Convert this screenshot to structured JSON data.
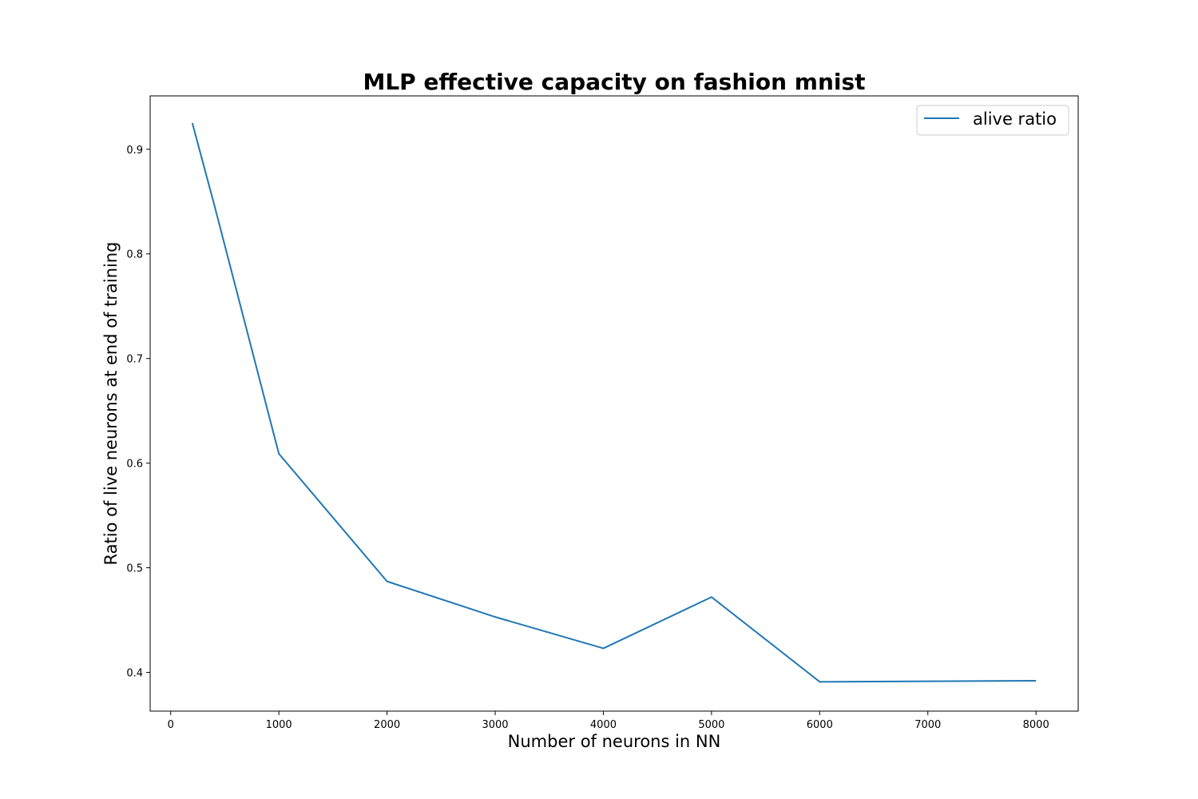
{
  "chart_data": {
    "type": "line",
    "title": "MLP effective capacity on fashion mnist",
    "xlabel": "Number of neurons in NN",
    "ylabel": "Ratio of live neurons at end of training",
    "xlim": [
      -190,
      8390
    ],
    "ylim": [
      0.363,
      0.951
    ],
    "xticks": [
      0,
      1000,
      2000,
      3000,
      4000,
      5000,
      6000,
      7000,
      8000
    ],
    "yticks": [
      0.4,
      0.5,
      0.6,
      0.7,
      0.8,
      0.9
    ],
    "xtick_labels": [
      "0",
      "1000",
      "2000",
      "3000",
      "4000",
      "5000",
      "6000",
      "7000",
      "8000"
    ],
    "ytick_labels": [
      "0.4",
      "0.5",
      "0.6",
      "0.7",
      "0.8",
      "0.9"
    ],
    "grid": false,
    "legend_position": "top-right",
    "series": [
      {
        "name": "alive ratio",
        "color": "#1f77b4",
        "x": [
          200,
          400,
          1000,
          2000,
          3000,
          4000,
          5000,
          6000,
          8000
        ],
        "y": [
          0.925,
          0.848,
          0.609,
          0.487,
          0.453,
          0.423,
          0.472,
          0.391,
          0.392
        ]
      }
    ]
  }
}
